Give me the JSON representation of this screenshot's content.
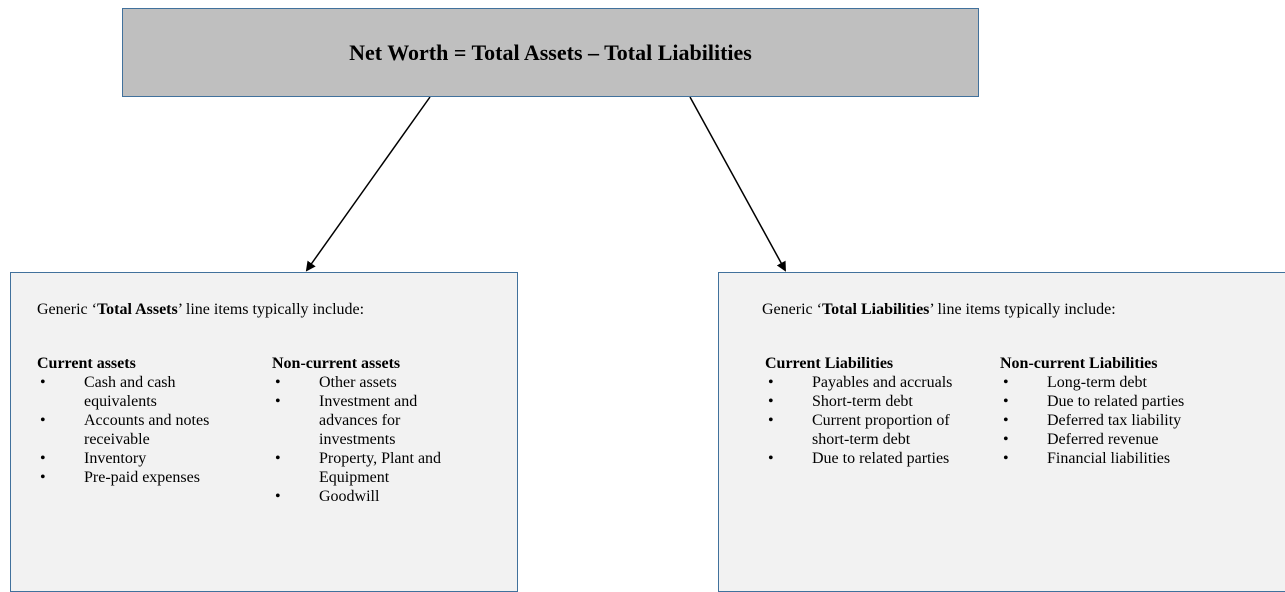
{
  "title": "Net Worth = Total Assets – Total Liabilities",
  "boxes": [
    {
      "intro": {
        "before": "Generic ‘",
        "bold": "Total Assets",
        "after": "’ line items typically include:"
      },
      "columns": [
        {
          "heading": "Current assets",
          "items": [
            "Cash and cash equivalents",
            "Accounts and notes receivable",
            "Inventory",
            "Pre-paid expenses"
          ]
        },
        {
          "heading": "Non-current assets",
          "items": [
            "Other assets",
            "Investment and advances for investments",
            "Property, Plant and Equipment",
            "Goodwill"
          ]
        }
      ]
    },
    {
      "intro": {
        "before": "Generic ‘",
        "bold": "Total Liabilities",
        "after": "’ line items typically include:"
      },
      "columns": [
        {
          "heading": "Current Liabilities",
          "items": [
            "Payables and accruals",
            "Short-term debt",
            "Current proportion of short-term debt",
            "Due to related parties"
          ]
        },
        {
          "heading": "Non-current Liabilities",
          "items": [
            "Long-term debt",
            "Due to related parties",
            "Deferred tax liability",
            "Deferred revenue",
            "Financial liabilities"
          ]
        }
      ]
    }
  ]
}
